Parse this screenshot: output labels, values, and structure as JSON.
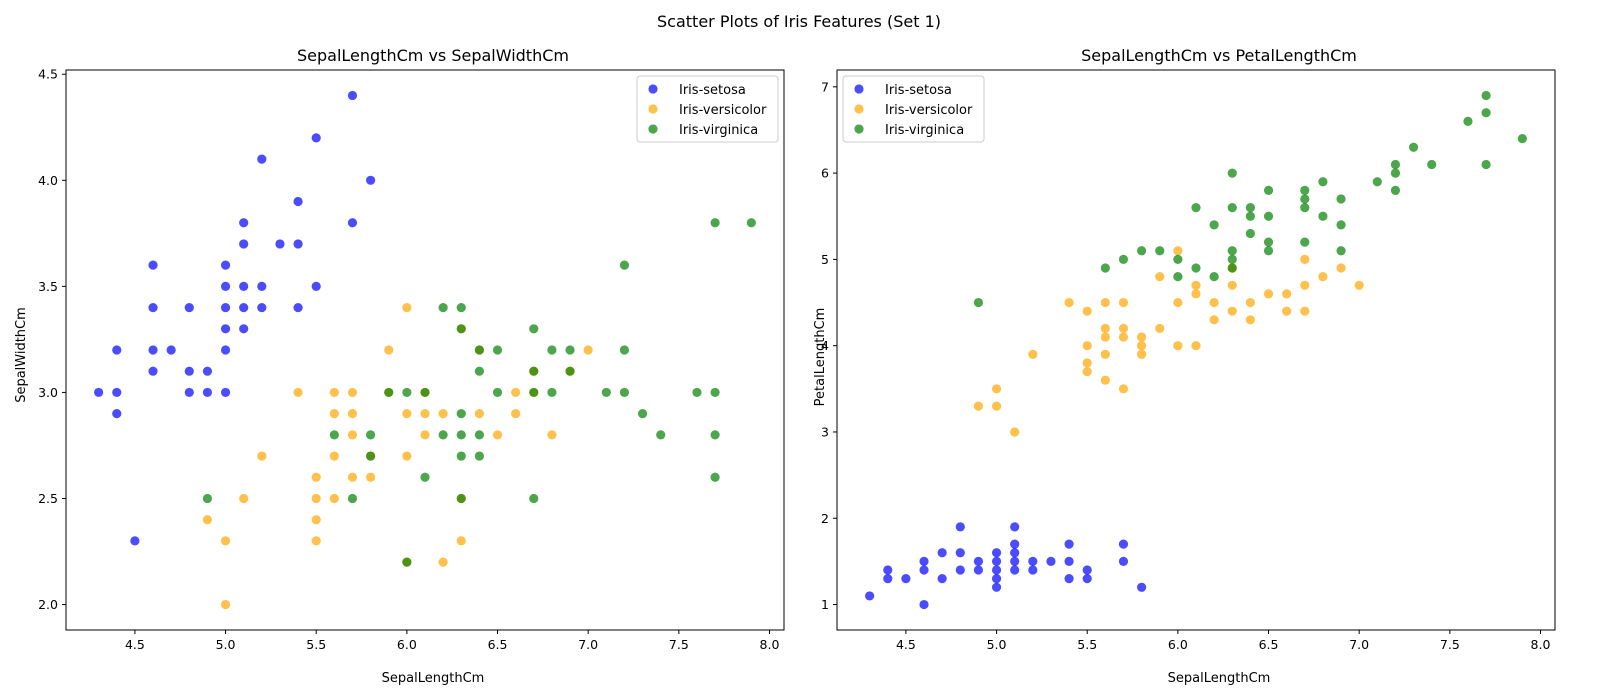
{
  "figure": {
    "suptitle": "Scatter Plots of Iris Features (Set 1)"
  },
  "colors": {
    "Iris-setosa": "#0000ff",
    "Iris-versicolor": "#ffa500",
    "Iris-virginica": "#008000"
  },
  "chart_data": [
    {
      "type": "scatter",
      "title": "SepalLengthCm vs SepalWidthCm",
      "xlabel": "SepalLengthCm",
      "ylabel": "SepalWidthCm",
      "xlim": [
        4.12,
        8.08
      ],
      "ylim": [
        1.88,
        4.52
      ],
      "xticks": [
        "4.5",
        "5.0",
        "5.5",
        "6.0",
        "6.5",
        "7.0",
        "7.5",
        "8.0"
      ],
      "yticks": [
        "2.0",
        "2.5",
        "3.0",
        "3.5",
        "4.0",
        "4.5"
      ],
      "legend": "top-right",
      "series": [
        {
          "name": "Iris-setosa",
          "color": "#0000ff",
          "points": [
            [
              4.3,
              3.0
            ],
            [
              4.4,
              3.0
            ],
            [
              4.4,
              3.2
            ],
            [
              4.4,
              2.9
            ],
            [
              4.5,
              2.3
            ],
            [
              4.6,
              3.6
            ],
            [
              4.6,
              3.4
            ],
            [
              4.6,
              3.2
            ],
            [
              4.6,
              3.1
            ],
            [
              4.7,
              3.2
            ],
            [
              4.8,
              3.4
            ],
            [
              4.8,
              3.1
            ],
            [
              4.8,
              3.0
            ],
            [
              4.9,
              3.1
            ],
            [
              4.9,
              3.0
            ],
            [
              5.0,
              3.6
            ],
            [
              5.0,
              3.5
            ],
            [
              5.0,
              3.4
            ],
            [
              5.0,
              3.3
            ],
            [
              5.0,
              3.2
            ],
            [
              5.0,
              3.0
            ],
            [
              5.1,
              3.8
            ],
            [
              5.1,
              3.7
            ],
            [
              5.1,
              3.5
            ],
            [
              5.1,
              3.4
            ],
            [
              5.1,
              3.3
            ],
            [
              5.2,
              4.1
            ],
            [
              5.2,
              3.5
            ],
            [
              5.2,
              3.4
            ],
            [
              5.3,
              3.7
            ],
            [
              5.4,
              3.9
            ],
            [
              5.4,
              3.7
            ],
            [
              5.4,
              3.4
            ],
            [
              5.5,
              4.2
            ],
            [
              5.5,
              3.5
            ],
            [
              5.7,
              4.4
            ],
            [
              5.7,
              3.8
            ],
            [
              5.8,
              4.0
            ]
          ]
        },
        {
          "name": "Iris-versicolor",
          "color": "#ffa500",
          "points": [
            [
              4.9,
              2.4
            ],
            [
              5.0,
              2.3
            ],
            [
              5.0,
              2.0
            ],
            [
              5.1,
              2.5
            ],
            [
              5.2,
              2.7
            ],
            [
              5.4,
              3.0
            ],
            [
              5.5,
              2.6
            ],
            [
              5.5,
              2.5
            ],
            [
              5.5,
              2.4
            ],
            [
              5.5,
              2.3
            ],
            [
              5.6,
              3.0
            ],
            [
              5.6,
              2.9
            ],
            [
              5.6,
              2.7
            ],
            [
              5.6,
              2.5
            ],
            [
              5.7,
              3.0
            ],
            [
              5.7,
              2.9
            ],
            [
              5.7,
              2.8
            ],
            [
              5.7,
              2.6
            ],
            [
              5.8,
              2.7
            ],
            [
              5.8,
              2.6
            ],
            [
              5.9,
              3.2
            ],
            [
              5.9,
              3.0
            ],
            [
              6.0,
              3.4
            ],
            [
              6.0,
              2.9
            ],
            [
              6.0,
              2.7
            ],
            [
              6.0,
              2.2
            ],
            [
              6.1,
              3.0
            ],
            [
              6.1,
              2.9
            ],
            [
              6.1,
              2.8
            ],
            [
              6.2,
              2.9
            ],
            [
              6.2,
              2.2
            ],
            [
              6.3,
              3.3
            ],
            [
              6.3,
              2.5
            ],
            [
              6.3,
              2.3
            ],
            [
              6.4,
              3.2
            ],
            [
              6.4,
              2.9
            ],
            [
              6.5,
              2.8
            ],
            [
              6.6,
              3.0
            ],
            [
              6.6,
              2.9
            ],
            [
              6.7,
              3.1
            ],
            [
              6.7,
              3.0
            ],
            [
              6.8,
              2.8
            ],
            [
              6.9,
              3.1
            ],
            [
              7.0,
              3.2
            ]
          ]
        },
        {
          "name": "Iris-virginica",
          "color": "#008000",
          "points": [
            [
              4.9,
              2.5
            ],
            [
              5.6,
              2.8
            ],
            [
              5.7,
              2.5
            ],
            [
              5.8,
              2.8
            ],
            [
              5.8,
              2.7
            ],
            [
              5.9,
              3.0
            ],
            [
              6.0,
              3.0
            ],
            [
              6.0,
              2.2
            ],
            [
              6.1,
              3.0
            ],
            [
              6.1,
              2.6
            ],
            [
              6.2,
              3.4
            ],
            [
              6.2,
              2.8
            ],
            [
              6.3,
              3.4
            ],
            [
              6.3,
              3.3
            ],
            [
              6.3,
              2.9
            ],
            [
              6.3,
              2.8
            ],
            [
              6.3,
              2.7
            ],
            [
              6.3,
              2.5
            ],
            [
              6.4,
              3.2
            ],
            [
              6.4,
              3.1
            ],
            [
              6.4,
              2.8
            ],
            [
              6.4,
              2.7
            ],
            [
              6.5,
              3.2
            ],
            [
              6.5,
              3.0
            ],
            [
              6.7,
              3.3
            ],
            [
              6.7,
              3.1
            ],
            [
              6.7,
              3.0
            ],
            [
              6.7,
              2.5
            ],
            [
              6.8,
              3.2
            ],
            [
              6.8,
              3.0
            ],
            [
              6.9,
              3.2
            ],
            [
              6.9,
              3.1
            ],
            [
              7.1,
              3.0
            ],
            [
              7.2,
              3.6
            ],
            [
              7.2,
              3.2
            ],
            [
              7.2,
              3.0
            ],
            [
              7.3,
              2.9
            ],
            [
              7.4,
              2.8
            ],
            [
              7.6,
              3.0
            ],
            [
              7.7,
              3.8
            ],
            [
              7.7,
              3.0
            ],
            [
              7.7,
              2.8
            ],
            [
              7.7,
              2.6
            ],
            [
              7.9,
              3.8
            ]
          ]
        }
      ]
    },
    {
      "type": "scatter",
      "title": "SepalLengthCm vs PetalLengthCm",
      "xlabel": "SepalLengthCm",
      "ylabel": "PetalLengthCm",
      "xlim": [
        4.12,
        8.08
      ],
      "ylim": [
        0.705,
        7.195
      ],
      "xticks": [
        "4.5",
        "5.0",
        "5.5",
        "6.0",
        "6.5",
        "7.0",
        "7.5",
        "8.0"
      ],
      "yticks": [
        "1",
        "2",
        "3",
        "4",
        "5",
        "6",
        "7"
      ],
      "legend": "top-left",
      "series": [
        {
          "name": "Iris-setosa",
          "color": "#0000ff",
          "points": [
            [
              4.3,
              1.1
            ],
            [
              4.4,
              1.4
            ],
            [
              4.4,
              1.3
            ],
            [
              4.5,
              1.3
            ],
            [
              4.6,
              1.5
            ],
            [
              4.6,
              1.4
            ],
            [
              4.6,
              1.0
            ],
            [
              4.7,
              1.6
            ],
            [
              4.7,
              1.3
            ],
            [
              4.8,
              1.9
            ],
            [
              4.8,
              1.6
            ],
            [
              4.8,
              1.4
            ],
            [
              4.9,
              1.5
            ],
            [
              4.9,
              1.4
            ],
            [
              5.0,
              1.6
            ],
            [
              5.0,
              1.5
            ],
            [
              5.0,
              1.4
            ],
            [
              5.0,
              1.3
            ],
            [
              5.0,
              1.2
            ],
            [
              5.1,
              1.9
            ],
            [
              5.1,
              1.7
            ],
            [
              5.1,
              1.6
            ],
            [
              5.1,
              1.5
            ],
            [
              5.1,
              1.4
            ],
            [
              5.2,
              1.5
            ],
            [
              5.2,
              1.4
            ],
            [
              5.3,
              1.5
            ],
            [
              5.4,
              1.7
            ],
            [
              5.4,
              1.5
            ],
            [
              5.4,
              1.3
            ],
            [
              5.5,
              1.4
            ],
            [
              5.5,
              1.3
            ],
            [
              5.7,
              1.7
            ],
            [
              5.7,
              1.5
            ],
            [
              5.8,
              1.2
            ]
          ]
        },
        {
          "name": "Iris-versicolor",
          "color": "#ffa500",
          "points": [
            [
              4.9,
              3.3
            ],
            [
              5.0,
              3.5
            ],
            [
              5.0,
              3.3
            ],
            [
              5.1,
              3.0
            ],
            [
              5.2,
              3.9
            ],
            [
              5.4,
              4.5
            ],
            [
              5.5,
              4.4
            ],
            [
              5.5,
              4.0
            ],
            [
              5.5,
              3.8
            ],
            [
              5.5,
              3.7
            ],
            [
              5.6,
              4.5
            ],
            [
              5.6,
              4.2
            ],
            [
              5.6,
              4.1
            ],
            [
              5.6,
              3.9
            ],
            [
              5.6,
              3.6
            ],
            [
              5.7,
              4.5
            ],
            [
              5.7,
              4.2
            ],
            [
              5.7,
              4.1
            ],
            [
              5.7,
              3.5
            ],
            [
              5.8,
              4.1
            ],
            [
              5.8,
              4.0
            ],
            [
              5.8,
              3.9
            ],
            [
              5.9,
              4.8
            ],
            [
              5.9,
              4.2
            ],
            [
              6.0,
              5.1
            ],
            [
              6.0,
              4.5
            ],
            [
              6.0,
              4.0
            ],
            [
              6.1,
              4.7
            ],
            [
              6.1,
              4.6
            ],
            [
              6.1,
              4.0
            ],
            [
              6.2,
              4.5
            ],
            [
              6.2,
              4.3
            ],
            [
              6.3,
              4.9
            ],
            [
              6.3,
              4.7
            ],
            [
              6.3,
              4.4
            ],
            [
              6.4,
              4.5
            ],
            [
              6.4,
              4.3
            ],
            [
              6.5,
              4.6
            ],
            [
              6.6,
              4.6
            ],
            [
              6.6,
              4.4
            ],
            [
              6.7,
              5.0
            ],
            [
              6.7,
              4.7
            ],
            [
              6.7,
              4.4
            ],
            [
              6.8,
              4.8
            ],
            [
              6.9,
              4.9
            ],
            [
              7.0,
              4.7
            ]
          ]
        },
        {
          "name": "Iris-virginica",
          "color": "#008000",
          "points": [
            [
              4.9,
              4.5
            ],
            [
              5.6,
              4.9
            ],
            [
              5.7,
              5.0
            ],
            [
              5.8,
              5.1
            ],
            [
              5.9,
              5.1
            ],
            [
              6.0,
              5.0
            ],
            [
              6.0,
              4.8
            ],
            [
              6.1,
              5.6
            ],
            [
              6.1,
              4.9
            ],
            [
              6.2,
              5.4
            ],
            [
              6.2,
              4.8
            ],
            [
              6.3,
              6.0
            ],
            [
              6.3,
              5.6
            ],
            [
              6.3,
              5.1
            ],
            [
              6.3,
              5.0
            ],
            [
              6.3,
              4.9
            ],
            [
              6.4,
              5.6
            ],
            [
              6.4,
              5.5
            ],
            [
              6.4,
              5.3
            ],
            [
              6.5,
              5.8
            ],
            [
              6.5,
              5.5
            ],
            [
              6.5,
              5.2
            ],
            [
              6.5,
              5.1
            ],
            [
              6.7,
              5.8
            ],
            [
              6.7,
              5.7
            ],
            [
              6.7,
              5.6
            ],
            [
              6.7,
              5.2
            ],
            [
              6.8,
              5.9
            ],
            [
              6.8,
              5.5
            ],
            [
              6.9,
              5.7
            ],
            [
              6.9,
              5.4
            ],
            [
              6.9,
              5.1
            ],
            [
              7.1,
              5.9
            ],
            [
              7.2,
              6.1
            ],
            [
              7.2,
              6.0
            ],
            [
              7.2,
              5.8
            ],
            [
              7.3,
              6.3
            ],
            [
              7.4,
              6.1
            ],
            [
              7.6,
              6.6
            ],
            [
              7.7,
              6.9
            ],
            [
              7.7,
              6.7
            ],
            [
              7.7,
              6.1
            ],
            [
              7.9,
              6.4
            ]
          ]
        }
      ]
    }
  ]
}
